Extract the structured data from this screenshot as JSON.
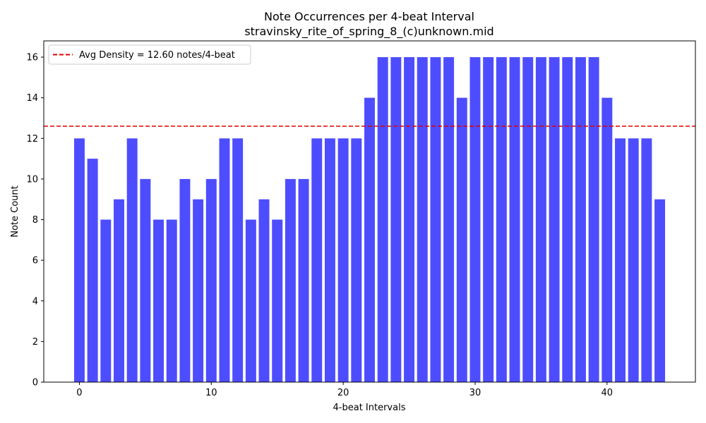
{
  "chart_data": {
    "type": "bar",
    "title": "Note Occurrences per 4-beat Interval",
    "subtitle": "stravinsky_rite_of_spring_8_(c)unknown.mid",
    "xlabel": "4-beat Intervals",
    "ylabel": "Note Count",
    "x": [
      0,
      1,
      2,
      3,
      4,
      5,
      6,
      7,
      8,
      9,
      10,
      11,
      12,
      13,
      14,
      15,
      16,
      17,
      18,
      19,
      20,
      21,
      22,
      23,
      24,
      25,
      26,
      27,
      28,
      29,
      30,
      31,
      32,
      33,
      34,
      35,
      36,
      37,
      38,
      39,
      40,
      41,
      42,
      43,
      44
    ],
    "values": [
      12,
      11,
      8,
      9,
      12,
      10,
      8,
      8,
      10,
      9,
      10,
      12,
      12,
      8,
      9,
      8,
      10,
      10,
      12,
      12,
      12,
      12,
      14,
      16,
      16,
      16,
      16,
      16,
      16,
      14,
      16,
      16,
      16,
      16,
      16,
      16,
      16,
      16,
      16,
      16,
      14,
      12,
      12,
      12,
      9
    ],
    "xlim": [
      -2.7,
      46.7
    ],
    "ylim": [
      0,
      16.8
    ],
    "xticks": [
      0,
      10,
      20,
      30,
      40
    ],
    "yticks": [
      0,
      2,
      4,
      6,
      8,
      10,
      12,
      14,
      16
    ],
    "bar_color": "#4d4dff",
    "average_line": {
      "value": 12.6,
      "label": "Avg Density = 12.60 notes/4-beat",
      "color": "#e00000",
      "style": "dashed"
    },
    "legend_position": "top-left",
    "grid": false
  }
}
